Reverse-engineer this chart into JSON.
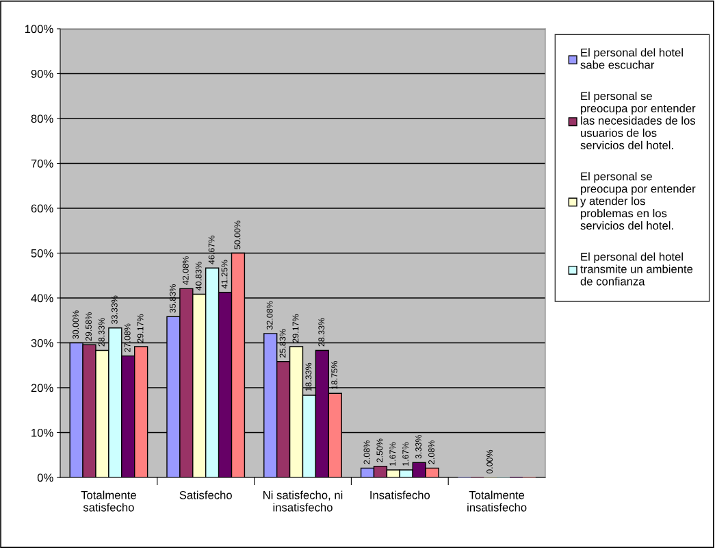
{
  "chart_data": {
    "type": "bar",
    "categories": [
      "Totalmente satisfecho",
      "Satisfecho",
      "Ni satisfecho, ni insatisfecho",
      "Insatisfecho",
      "Totalmente insatisfecho"
    ],
    "series": [
      {
        "name": "El personal del hotel sabe escuchar",
        "color": "#9999ff",
        "values": [
          30.0,
          35.83,
          32.08,
          2.08,
          0
        ],
        "value_labels": [
          "30.00%",
          "35.83%",
          "32.08%",
          "2.08%",
          null
        ]
      },
      {
        "name": "El personal se preocupa por entender las necesidades de los usuarios de los servicios del hotel.",
        "color": "#993366",
        "values": [
          29.58,
          42.08,
          25.83,
          2.5,
          0
        ],
        "value_labels": [
          "29.58%",
          "42.08%",
          "25.83%",
          "2.50%",
          null
        ]
      },
      {
        "name": "El personal se preocupa por entender y atender los problemas en los servicios del hotel.",
        "color": "#ffffcc",
        "values": [
          28.33,
          40.83,
          29.17,
          1.67,
          0
        ],
        "value_labels": [
          "28.33%",
          "40.83%",
          "29.17%",
          "1.67%",
          "0.00%"
        ]
      },
      {
        "name": "El personal del hotel transmite un ambiente de confianza",
        "color": "#ccffff",
        "values": [
          33.33,
          46.67,
          18.33,
          1.67,
          0
        ],
        "value_labels": [
          "33.33%",
          "46.67%",
          "18.33%",
          "1.67%",
          null
        ]
      },
      {
        "color": "#660066",
        "values": [
          27.08,
          41.25,
          28.33,
          3.33,
          0
        ],
        "value_labels": [
          "27.08%",
          "41.25%",
          "28.33%",
          "3.33%",
          null
        ]
      },
      {
        "color": "#ff8080",
        "values": [
          29.17,
          50.0,
          18.75,
          2.08,
          0
        ],
        "value_labels": [
          "29.17%",
          "50.00%",
          "18.75%",
          "2.08%",
          null
        ]
      }
    ],
    "ylim": [
      0,
      100
    ],
    "yticks": [
      {
        "value": 0,
        "label": "0%"
      },
      {
        "value": 10,
        "label": "10%"
      },
      {
        "value": 20,
        "label": "20%"
      },
      {
        "value": 30,
        "label": "30%"
      },
      {
        "value": 40,
        "label": "40%"
      },
      {
        "value": 50,
        "label": "50%"
      },
      {
        "value": 60,
        "label": "60%"
      },
      {
        "value": 70,
        "label": "70%"
      },
      {
        "value": 80,
        "label": "80%"
      },
      {
        "value": 90,
        "label": "90%"
      },
      {
        "value": 100,
        "label": "100%"
      }
    ],
    "grid": "y",
    "legend": "right"
  }
}
